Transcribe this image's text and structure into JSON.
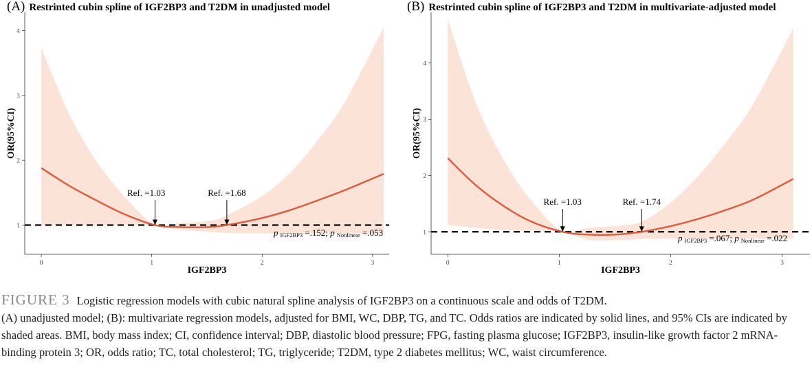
{
  "chart_data": [
    {
      "type": "line",
      "panel_label": "(A)",
      "title": "Restrinted cubin spline of IGF2BP3 and T2DM in unadjusted model",
      "xlabel": "IGF2BP3",
      "ylabel": "OR(95%CI)",
      "xlim": [
        -0.15,
        3.15
      ],
      "ylim": [
        0.55,
        4.28
      ],
      "xticks": [
        0,
        1,
        2,
        3
      ],
      "yticks": [
        1,
        2,
        3,
        4
      ],
      "grid": false,
      "colors": {
        "line": "#e05a3a",
        "band": "#fce3d8",
        "reference": "#000000"
      },
      "reference_line": 1,
      "series": [
        {
          "kind": "line",
          "x": [
            0,
            0.25,
            0.5,
            0.75,
            1.03,
            1.25,
            1.5,
            1.68,
            2.0,
            2.25,
            2.5,
            2.75,
            3.1
          ],
          "y": [
            1.88,
            1.61,
            1.38,
            1.17,
            1.0,
            0.97,
            0.97,
            1.0,
            1.11,
            1.23,
            1.38,
            1.54,
            1.79
          ]
        },
        {
          "kind": "band",
          "x": [
            0,
            0.25,
            0.5,
            0.75,
            1.03,
            1.25,
            1.5,
            1.68,
            2.0,
            2.25,
            2.5,
            2.75,
            3.1
          ],
          "lower": [
            1.0,
            1.0,
            1.0,
            1.0,
            1.0,
            0.93,
            0.9,
            0.88,
            0.87,
            0.87,
            0.87,
            0.87,
            0.87
          ],
          "upper": [
            3.73,
            2.72,
            1.98,
            1.45,
            1.0,
            1.03,
            1.06,
            1.15,
            1.45,
            1.8,
            2.3,
            2.9,
            4.05
          ]
        }
      ],
      "annotations": [
        {
          "text": "Ref. =1.03",
          "x": 1.03,
          "y": 1.0,
          "label_x": 0.95,
          "label_y": 1.45
        },
        {
          "text": "Ref. =1.68",
          "x": 1.68,
          "y": 1.0,
          "label_x": 1.68,
          "label_y": 1.45
        }
      ],
      "pvalue": {
        "p1": "p",
        "s1": "IGF2BP3",
        "v1": " =.152; ",
        "p2": "p",
        "s2": "Nonlinear",
        "v2": " =.053"
      }
    },
    {
      "type": "line",
      "panel_label": "(B)",
      "title": "Restrinted cubin spline of IGF2BP3 and T2DM in multivariate-adjusted model",
      "xlabel": "IGF2BP3",
      "ylabel": "OR(95%CI)",
      "xlim": [
        -0.15,
        3.25
      ],
      "ylim": [
        0.6,
        4.9
      ],
      "xticks": [
        0,
        1,
        2,
        3
      ],
      "yticks": [
        1,
        2,
        3,
        4
      ],
      "grid": false,
      "colors": {
        "line": "#e05a3a",
        "band": "#fce3d8",
        "reference": "#000000"
      },
      "reference_line": 1,
      "series": [
        {
          "kind": "line",
          "x": [
            0,
            0.25,
            0.5,
            0.75,
            1.03,
            1.25,
            1.5,
            1.74,
            2.0,
            2.25,
            2.5,
            2.75,
            3.1
          ],
          "y": [
            2.31,
            1.83,
            1.46,
            1.18,
            1.0,
            0.95,
            0.95,
            1.0,
            1.1,
            1.23,
            1.39,
            1.58,
            1.94
          ]
        },
        {
          "kind": "band",
          "x": [
            0,
            0.25,
            0.5,
            0.75,
            1.03,
            1.25,
            1.5,
            1.74,
            2.0,
            2.25,
            2.5,
            2.75,
            3.1
          ],
          "lower": [
            1.12,
            1.07,
            1.03,
            1.01,
            1.0,
            0.86,
            0.85,
            0.87,
            0.88,
            0.88,
            0.88,
            0.88,
            0.88
          ],
          "upper": [
            4.78,
            3.3,
            2.28,
            1.55,
            1.0,
            1.07,
            1.1,
            1.18,
            1.52,
            2.0,
            2.6,
            3.3,
            4.62
          ]
        }
      ],
      "annotations": [
        {
          "text": "Ref. =1.03",
          "x": 1.03,
          "y": 1.0,
          "label_x": 1.03,
          "label_y": 1.48
        },
        {
          "text": "Ref. =1.74",
          "x": 1.74,
          "y": 1.0,
          "label_x": 1.74,
          "label_y": 1.48
        }
      ],
      "pvalue": {
        "p1": "p",
        "s1": "IGF2BP3",
        "v1": " =.067; ",
        "p2": "p",
        "s2": "Nonlinear",
        "v2": " =.022"
      }
    }
  ],
  "caption": {
    "label": "FIGURE 3",
    "lead": "Logistic regression models with cubic natural spline analysis of IGF2BP3 on a continuous scale and odds of T2DM.",
    "body": "(A) unadjusted model; (B): multivariate regression models, adjusted for BMI, WC, DBP, TG, and TC. Odds ratios are indicated by solid lines, and 95% CIs are indicated by shaded areas. BMI, body mass index; CI, confidence interval; DBP, diastolic blood pressure; FPG, fasting plasma glucose; IGF2BP3, insulin-like growth factor 2 mRNA-binding protein 3; OR, odds ratio; TC, total cholesterol; TG, triglyceride; T2DM, type 2 diabetes mellitus; WC, waist circumference."
  }
}
